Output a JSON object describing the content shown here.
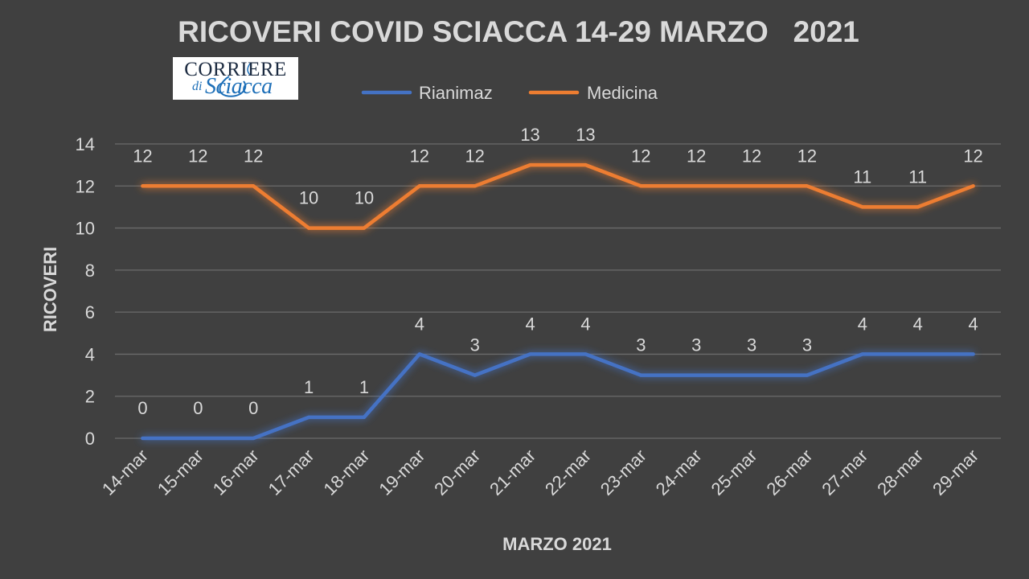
{
  "logo": {
    "text_top": "CORRIERE",
    "text_di": "di",
    "text_main": "Sciacca"
  },
  "colors": {
    "background": "#404040",
    "rianimaz": "#4472c4",
    "medicina": "#ed7d31",
    "grid": "#6b6b6b",
    "text": "#d9d9d9"
  },
  "chart_data": {
    "type": "line",
    "title": "RICOVERI COVID SCIACCA 14-29 MARZO   2021",
    "xlabel": "MARZO 2021",
    "ylabel": "RICOVERI",
    "ylim": [
      0,
      14
    ],
    "yticks": [
      0,
      2,
      4,
      6,
      8,
      10,
      12,
      14
    ],
    "grid": "horizontal",
    "legend_position": "top",
    "categories": [
      "14-mar",
      "15-mar",
      "16-mar",
      "17-mar",
      "18-mar",
      "19-mar",
      "20-mar",
      "21-mar",
      "22-mar",
      "23-mar",
      "24-mar",
      "25-mar",
      "26-mar",
      "27-mar",
      "28-mar",
      "29-mar"
    ],
    "series": [
      {
        "name": "Rianimaz",
        "color": "#4472c4",
        "values": [
          0,
          0,
          0,
          1,
          1,
          4,
          3,
          4,
          4,
          3,
          3,
          3,
          3,
          4,
          4,
          4
        ]
      },
      {
        "name": "Medicina",
        "color": "#ed7d31",
        "values": [
          12,
          12,
          12,
          10,
          10,
          12,
          12,
          13,
          13,
          12,
          12,
          12,
          12,
          11,
          11,
          12
        ]
      }
    ]
  }
}
